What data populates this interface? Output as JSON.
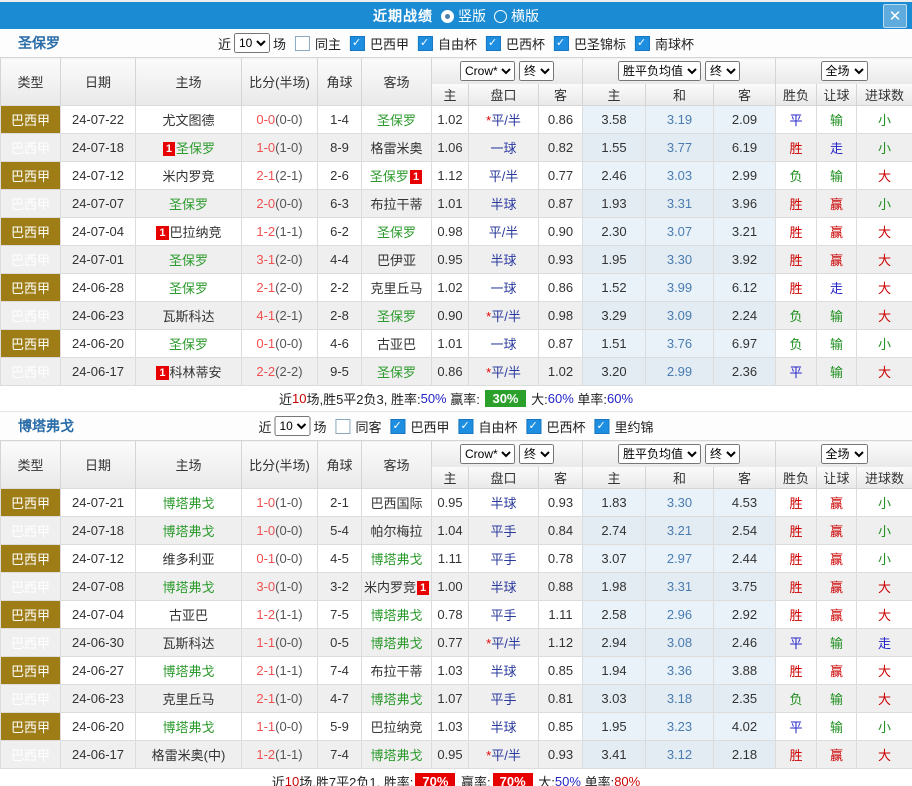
{
  "titlebar": {
    "title": "近期战绩",
    "layout_options": [
      {
        "label": "竖版",
        "selected": true
      },
      {
        "label": "横版",
        "selected": false
      }
    ],
    "close_label": "✕"
  },
  "colors": {
    "titlebar_blue": "#1b8cd3",
    "league_gold": "#9e7c16",
    "team_green": "#2e9b2e",
    "score_red": "#f05050",
    "handicap_blue": "#2b3a9e",
    "result_red": "#cc0000",
    "result_green": "#1f8f1f",
    "result_blue": "#2424c8",
    "badge_green": "#2ba02b",
    "badge_red": "#e60000"
  },
  "table_headers": {
    "left": [
      "类型",
      "日期",
      "主场",
      "比分(半场)",
      "角球",
      "客场"
    ],
    "sub": [
      "主",
      "盘口",
      "客",
      "主",
      "和",
      "客",
      "胜负",
      "让球",
      "进球数"
    ],
    "selects": {
      "odds_company": "Crow*",
      "odds_stage": "终",
      "avg_type": "胜平负均值",
      "avg_stage": "终",
      "scope": "全场"
    }
  },
  "filter_labels": {
    "near": "近",
    "count": "10",
    "games": "场"
  },
  "sections": [
    {
      "team": "圣保罗",
      "same_label": "同主",
      "same_checked": false,
      "leagues": [
        "巴西甲",
        "自由杯",
        "巴西杯",
        "巴圣锦标",
        "南球杯"
      ],
      "rows": [
        {
          "league": "巴西甲",
          "date": "24-07-22",
          "home": {
            "name": "尤文图德",
            "hl": false
          },
          "score": "0-0",
          "half": "(0-0)",
          "corner": "1-4",
          "away": {
            "name": "圣保罗",
            "hl": true
          },
          "odds": [
            "1.02",
            "*平/半",
            "0.86"
          ],
          "avg": [
            "3.58",
            "3.19",
            "2.09"
          ],
          "results": [
            {
              "t": "平",
              "c": "b"
            },
            {
              "t": "输",
              "c": "g"
            },
            {
              "t": "小",
              "c": "g"
            }
          ]
        },
        {
          "league": "巴西甲",
          "date": "24-07-18",
          "home": {
            "name": "圣保罗",
            "hl": true,
            "card_pre": "1"
          },
          "score": "1-0",
          "half": "(1-0)",
          "corner": "8-9",
          "away": {
            "name": "格雷米奥",
            "hl": false
          },
          "odds": [
            "1.06",
            "一球",
            "0.82"
          ],
          "avg": [
            "1.55",
            "3.77",
            "6.19"
          ],
          "results": [
            {
              "t": "胜",
              "c": "r"
            },
            {
              "t": "走",
              "c": "b"
            },
            {
              "t": "小",
              "c": "g"
            }
          ]
        },
        {
          "league": "巴西甲",
          "date": "24-07-12",
          "home": {
            "name": "米内罗竞",
            "hl": false
          },
          "score": "2-1",
          "half": "(2-1)",
          "corner": "2-6",
          "away": {
            "name": "圣保罗",
            "hl": true,
            "card_post": "1"
          },
          "odds": [
            "1.12",
            "平/半",
            "0.77"
          ],
          "avg": [
            "2.46",
            "3.03",
            "2.99"
          ],
          "results": [
            {
              "t": "负",
              "c": "g"
            },
            {
              "t": "输",
              "c": "g"
            },
            {
              "t": "大",
              "c": "r"
            }
          ]
        },
        {
          "league": "巴西甲",
          "date": "24-07-07",
          "home": {
            "name": "圣保罗",
            "hl": true
          },
          "score": "2-0",
          "half": "(0-0)",
          "corner": "6-3",
          "away": {
            "name": "布拉干蒂",
            "hl": false
          },
          "odds": [
            "1.01",
            "半球",
            "0.87"
          ],
          "avg": [
            "1.93",
            "3.31",
            "3.96"
          ],
          "results": [
            {
              "t": "胜",
              "c": "r"
            },
            {
              "t": "赢",
              "c": "r"
            },
            {
              "t": "小",
              "c": "g"
            }
          ]
        },
        {
          "league": "巴西甲",
          "date": "24-07-04",
          "home": {
            "name": "巴拉纳竞",
            "hl": false,
            "card_pre": "1"
          },
          "score": "1-2",
          "half": "(1-1)",
          "corner": "6-2",
          "away": {
            "name": "圣保罗",
            "hl": true
          },
          "odds": [
            "0.98",
            "平/半",
            "0.90"
          ],
          "avg": [
            "2.30",
            "3.07",
            "3.21"
          ],
          "results": [
            {
              "t": "胜",
              "c": "r"
            },
            {
              "t": "赢",
              "c": "r"
            },
            {
              "t": "大",
              "c": "r"
            }
          ]
        },
        {
          "league": "巴西甲",
          "date": "24-07-01",
          "home": {
            "name": "圣保罗",
            "hl": true
          },
          "score": "3-1",
          "half": "(2-0)",
          "corner": "4-4",
          "away": {
            "name": "巴伊亚",
            "hl": false
          },
          "odds": [
            "0.95",
            "半球",
            "0.93"
          ],
          "avg": [
            "1.95",
            "3.30",
            "3.92"
          ],
          "results": [
            {
              "t": "胜",
              "c": "r"
            },
            {
              "t": "赢",
              "c": "r"
            },
            {
              "t": "大",
              "c": "r"
            }
          ]
        },
        {
          "league": "巴西甲",
          "date": "24-06-28",
          "home": {
            "name": "圣保罗",
            "hl": true
          },
          "score": "2-1",
          "half": "(2-0)",
          "corner": "2-2",
          "away": {
            "name": "克里丘马",
            "hl": false
          },
          "odds": [
            "1.02",
            "一球",
            "0.86"
          ],
          "avg": [
            "1.52",
            "3.99",
            "6.12"
          ],
          "results": [
            {
              "t": "胜",
              "c": "r"
            },
            {
              "t": "走",
              "c": "b"
            },
            {
              "t": "大",
              "c": "r"
            }
          ]
        },
        {
          "league": "巴西甲",
          "date": "24-06-23",
          "home": {
            "name": "瓦斯科达",
            "hl": false
          },
          "score": "4-1",
          "half": "(2-1)",
          "corner": "2-8",
          "away": {
            "name": "圣保罗",
            "hl": true
          },
          "odds": [
            "0.90",
            "*平/半",
            "0.98"
          ],
          "avg": [
            "3.29",
            "3.09",
            "2.24"
          ],
          "results": [
            {
              "t": "负",
              "c": "g"
            },
            {
              "t": "输",
              "c": "g"
            },
            {
              "t": "大",
              "c": "r"
            }
          ]
        },
        {
          "league": "巴西甲",
          "date": "24-06-20",
          "home": {
            "name": "圣保罗",
            "hl": true
          },
          "score": "0-1",
          "half": "(0-0)",
          "corner": "4-6",
          "away": {
            "name": "古亚巴",
            "hl": false
          },
          "odds": [
            "1.01",
            "一球",
            "0.87"
          ],
          "avg": [
            "1.51",
            "3.76",
            "6.97"
          ],
          "results": [
            {
              "t": "负",
              "c": "g"
            },
            {
              "t": "输",
              "c": "g"
            },
            {
              "t": "小",
              "c": "g"
            }
          ]
        },
        {
          "league": "巴西甲",
          "date": "24-06-17",
          "home": {
            "name": "科林蒂安",
            "hl": false,
            "card_pre": "1"
          },
          "score": "2-2",
          "half": "(2-2)",
          "corner": "9-5",
          "away": {
            "name": "圣保罗",
            "hl": true
          },
          "odds": [
            "0.86",
            "*平/半",
            "1.02"
          ],
          "avg": [
            "3.20",
            "2.99",
            "2.36"
          ],
          "results": [
            {
              "t": "平",
              "c": "b"
            },
            {
              "t": "输",
              "c": "g"
            },
            {
              "t": "大",
              "c": "r"
            }
          ]
        }
      ],
      "summary": [
        {
          "t": "近"
        },
        {
          "t": "10",
          "c": "red"
        },
        {
          "t": "场,胜5平2负3, 胜率:"
        },
        {
          "t": "50%",
          "c": "blue"
        },
        {
          "t": " 赢率: "
        },
        {
          "t": "30%",
          "badge": "green"
        },
        {
          "t": " 大:"
        },
        {
          "t": "60%",
          "c": "blue"
        },
        {
          "t": " 单率:"
        },
        {
          "t": "60%",
          "c": "blue"
        }
      ]
    },
    {
      "team": "博塔弗戈",
      "same_label": "同客",
      "same_checked": false,
      "leagues": [
        "巴西甲",
        "自由杯",
        "巴西杯",
        "里约锦"
      ],
      "rows": [
        {
          "league": "巴西甲",
          "date": "24-07-21",
          "home": {
            "name": "博塔弗戈",
            "hl": true
          },
          "score": "1-0",
          "half": "(1-0)",
          "corner": "2-1",
          "away": {
            "name": "巴西国际",
            "hl": false
          },
          "odds": [
            "0.95",
            "半球",
            "0.93"
          ],
          "avg": [
            "1.83",
            "3.30",
            "4.53"
          ],
          "results": [
            {
              "t": "胜",
              "c": "r"
            },
            {
              "t": "赢",
              "c": "r"
            },
            {
              "t": "小",
              "c": "g"
            }
          ]
        },
        {
          "league": "巴西甲",
          "date": "24-07-18",
          "home": {
            "name": "博塔弗戈",
            "hl": true
          },
          "score": "1-0",
          "half": "(0-0)",
          "corner": "5-4",
          "away": {
            "name": "帕尔梅拉",
            "hl": false
          },
          "odds": [
            "1.04",
            "平手",
            "0.84"
          ],
          "avg": [
            "2.74",
            "3.21",
            "2.54"
          ],
          "results": [
            {
              "t": "胜",
              "c": "r"
            },
            {
              "t": "赢",
              "c": "r"
            },
            {
              "t": "小",
              "c": "g"
            }
          ]
        },
        {
          "league": "巴西甲",
          "date": "24-07-12",
          "home": {
            "name": "维多利亚",
            "hl": false
          },
          "score": "0-1",
          "half": "(0-0)",
          "corner": "4-5",
          "away": {
            "name": "博塔弗戈",
            "hl": true
          },
          "odds": [
            "1.11",
            "平手",
            "0.78"
          ],
          "avg": [
            "3.07",
            "2.97",
            "2.44"
          ],
          "results": [
            {
              "t": "胜",
              "c": "r"
            },
            {
              "t": "赢",
              "c": "r"
            },
            {
              "t": "小",
              "c": "g"
            }
          ]
        },
        {
          "league": "巴西甲",
          "date": "24-07-08",
          "home": {
            "name": "博塔弗戈",
            "hl": true
          },
          "score": "3-0",
          "half": "(1-0)",
          "corner": "3-2",
          "away": {
            "name": "米内罗竞",
            "hl": false,
            "card_post": "1"
          },
          "odds": [
            "1.00",
            "半球",
            "0.88"
          ],
          "avg": [
            "1.98",
            "3.31",
            "3.75"
          ],
          "results": [
            {
              "t": "胜",
              "c": "r"
            },
            {
              "t": "赢",
              "c": "r"
            },
            {
              "t": "大",
              "c": "r"
            }
          ]
        },
        {
          "league": "巴西甲",
          "date": "24-07-04",
          "home": {
            "name": "古亚巴",
            "hl": false
          },
          "score": "1-2",
          "half": "(1-1)",
          "corner": "7-5",
          "away": {
            "name": "博塔弗戈",
            "hl": true
          },
          "odds": [
            "0.78",
            "平手",
            "1.11"
          ],
          "avg": [
            "2.58",
            "2.96",
            "2.92"
          ],
          "results": [
            {
              "t": "胜",
              "c": "r"
            },
            {
              "t": "赢",
              "c": "r"
            },
            {
              "t": "大",
              "c": "r"
            }
          ]
        },
        {
          "league": "巴西甲",
          "date": "24-06-30",
          "home": {
            "name": "瓦斯科达",
            "hl": false
          },
          "score": "1-1",
          "half": "(0-0)",
          "corner": "0-5",
          "away": {
            "name": "博塔弗戈",
            "hl": true
          },
          "odds": [
            "0.77",
            "*平/半",
            "1.12"
          ],
          "avg": [
            "2.94",
            "3.08",
            "2.46"
          ],
          "results": [
            {
              "t": "平",
              "c": "b"
            },
            {
              "t": "输",
              "c": "g"
            },
            {
              "t": "走",
              "c": "b"
            }
          ]
        },
        {
          "league": "巴西甲",
          "date": "24-06-27",
          "home": {
            "name": "博塔弗戈",
            "hl": true
          },
          "score": "2-1",
          "half": "(1-1)",
          "corner": "7-4",
          "away": {
            "name": "布拉干蒂",
            "hl": false
          },
          "odds": [
            "1.03",
            "半球",
            "0.85"
          ],
          "avg": [
            "1.94",
            "3.36",
            "3.88"
          ],
          "results": [
            {
              "t": "胜",
              "c": "r"
            },
            {
              "t": "赢",
              "c": "r"
            },
            {
              "t": "大",
              "c": "r"
            }
          ]
        },
        {
          "league": "巴西甲",
          "date": "24-06-23",
          "home": {
            "name": "克里丘马",
            "hl": false
          },
          "score": "2-1",
          "half": "(1-0)",
          "corner": "4-7",
          "away": {
            "name": "博塔弗戈",
            "hl": true
          },
          "odds": [
            "1.07",
            "平手",
            "0.81"
          ],
          "avg": [
            "3.03",
            "3.18",
            "2.35"
          ],
          "results": [
            {
              "t": "负",
              "c": "g"
            },
            {
              "t": "输",
              "c": "g"
            },
            {
              "t": "大",
              "c": "r"
            }
          ]
        },
        {
          "league": "巴西甲",
          "date": "24-06-20",
          "home": {
            "name": "博塔弗戈",
            "hl": true
          },
          "score": "1-1",
          "half": "(0-0)",
          "corner": "5-9",
          "away": {
            "name": "巴拉纳竞",
            "hl": false
          },
          "odds": [
            "1.03",
            "半球",
            "0.85"
          ],
          "avg": [
            "1.95",
            "3.23",
            "4.02"
          ],
          "results": [
            {
              "t": "平",
              "c": "b"
            },
            {
              "t": "输",
              "c": "g"
            },
            {
              "t": "小",
              "c": "g"
            }
          ]
        },
        {
          "league": "巴西甲",
          "date": "24-06-17",
          "home": {
            "name": "格雷米奥(中)",
            "hl": false
          },
          "score": "1-2",
          "half": "(1-1)",
          "corner": "7-4",
          "away": {
            "name": "博塔弗戈",
            "hl": true
          },
          "odds": [
            "0.95",
            "*平/半",
            "0.93"
          ],
          "avg": [
            "3.41",
            "3.12",
            "2.18"
          ],
          "results": [
            {
              "t": "胜",
              "c": "r"
            },
            {
              "t": "赢",
              "c": "r"
            },
            {
              "t": "大",
              "c": "r"
            }
          ]
        }
      ],
      "summary": [
        {
          "t": "近"
        },
        {
          "t": "10",
          "c": "red"
        },
        {
          "t": "场,胜7平2负1, 胜率:"
        },
        {
          "t": "70%",
          "badge": "red"
        },
        {
          "t": " 赢率:"
        },
        {
          "t": "70%",
          "badge": "red"
        },
        {
          "t": " 大:"
        },
        {
          "t": "50%",
          "c": "blue"
        },
        {
          "t": " 单率:"
        },
        {
          "t": "80%",
          "c": "red"
        }
      ]
    }
  ]
}
